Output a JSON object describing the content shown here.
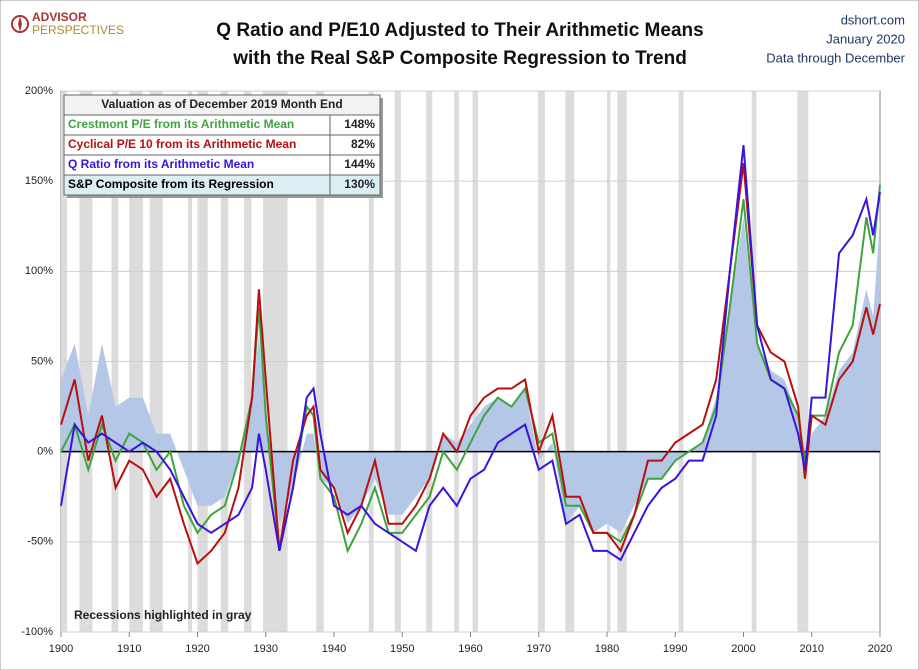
{
  "chart_data": {
    "type": "line",
    "logo": [
      "ADVISOR",
      "PERSPECTIVES"
    ],
    "title_lines": [
      "Q Ratio and P/E10 Adjusted to Their Arithmetic Means",
      "with the Real S&P Composite Regression to Trend"
    ],
    "source": [
      "dshort.com",
      "January 2020",
      "Data through December"
    ],
    "annotation": "Recessions highlighted in gray",
    "table_title": "Valuation as of December 2019  Month End",
    "x": [
      1900,
      1902,
      1904,
      1906,
      1908,
      1910,
      1912,
      1914,
      1916,
      1918,
      1920,
      1922,
      1924,
      1926,
      1928,
      1929,
      1930,
      1932,
      1934,
      1936,
      1937,
      1938,
      1940,
      1942,
      1944,
      1946,
      1948,
      1950,
      1952,
      1954,
      1956,
      1958,
      1960,
      1962,
      1964,
      1966,
      1968,
      1970,
      1972,
      1974,
      1976,
      1978,
      1980,
      1982,
      1984,
      1986,
      1988,
      1990,
      1992,
      1994,
      1996,
      1998,
      2000,
      2002,
      2004,
      2006,
      2008,
      2009,
      2010,
      2012,
      2014,
      2016,
      2018,
      2019,
      2020
    ],
    "series": [
      {
        "name": "S&P Composite from its Regression",
        "style": "area",
        "color": "#b4c7e7",
        "latest": 130,
        "latest_label": "130%",
        "values": [
          40,
          60,
          20,
          60,
          25,
          30,
          30,
          10,
          10,
          -10,
          -30,
          -30,
          -25,
          -5,
          30,
          65,
          20,
          -40,
          -20,
          10,
          10,
          -15,
          -20,
          -40,
          -30,
          -15,
          -35,
          -35,
          -25,
          -15,
          10,
          5,
          15,
          25,
          30,
          25,
          35,
          -5,
          5,
          -40,
          -30,
          -45,
          -40,
          -45,
          -30,
          -15,
          -15,
          -5,
          0,
          5,
          30,
          80,
          130,
          60,
          45,
          40,
          20,
          -5,
          10,
          20,
          45,
          55,
          90,
          75,
          130
        ]
      },
      {
        "name": "Crestmont P/E from its Arithmetic Mean",
        "style": "line",
        "color": "#3fa33f",
        "latest": 148,
        "latest_label": "148%",
        "values": [
          0,
          15,
          -10,
          15,
          -5,
          10,
          5,
          -10,
          0,
          -30,
          -45,
          -35,
          -30,
          -5,
          30,
          80,
          20,
          -55,
          -20,
          25,
          20,
          -15,
          -25,
          -55,
          -40,
          -20,
          -45,
          -45,
          -35,
          -25,
          0,
          -10,
          5,
          20,
          30,
          25,
          35,
          5,
          10,
          -30,
          -30,
          -45,
          -45,
          -50,
          -35,
          -15,
          -15,
          -5,
          0,
          5,
          25,
          80,
          140,
          60,
          40,
          35,
          20,
          -5,
          20,
          20,
          55,
          70,
          130,
          110,
          148
        ]
      },
      {
        "name": "Cyclical P/E 10 from its Arithmetic Mean",
        "style": "line",
        "color": "#b80f0f",
        "latest": 82,
        "latest_label": "82%",
        "values": [
          15,
          40,
          -5,
          20,
          -20,
          -5,
          -10,
          -25,
          -15,
          -40,
          -62,
          -55,
          -45,
          -20,
          30,
          90,
          40,
          -55,
          -5,
          20,
          25,
          -10,
          -20,
          -45,
          -30,
          -5,
          -40,
          -40,
          -30,
          -15,
          10,
          0,
          20,
          30,
          35,
          35,
          40,
          0,
          20,
          -25,
          -25,
          -45,
          -45,
          -55,
          -35,
          -5,
          -5,
          5,
          10,
          15,
          40,
          100,
          160,
          70,
          55,
          50,
          25,
          -15,
          20,
          15,
          40,
          50,
          80,
          65,
          82
        ]
      },
      {
        "name": "Q Ratio from its Arithmetic Mean",
        "style": "line",
        "color": "#3a14dc",
        "latest": 144,
        "latest_label": "144%",
        "values": [
          -30,
          15,
          5,
          10,
          5,
          0,
          5,
          0,
          -10,
          -25,
          -40,
          -45,
          -40,
          -35,
          -20,
          10,
          -10,
          -55,
          -20,
          30,
          35,
          10,
          -30,
          -35,
          -30,
          -40,
          -45,
          -50,
          -55,
          -30,
          -20,
          -30,
          -15,
          -10,
          5,
          10,
          15,
          -10,
          -5,
          -40,
          -35,
          -55,
          -55,
          -60,
          -45,
          -30,
          -20,
          -15,
          -5,
          -5,
          20,
          100,
          170,
          70,
          40,
          35,
          10,
          -10,
          30,
          30,
          110,
          120,
          140,
          120,
          144
        ]
      }
    ],
    "recessions": [
      [
        1899.5,
        1900.9
      ],
      [
        1902.7,
        1904.6
      ],
      [
        1907.4,
        1908.4
      ],
      [
        1910.0,
        1912.0
      ],
      [
        1913.0,
        1914.9
      ],
      [
        1918.6,
        1919.2
      ],
      [
        1920.0,
        1921.5
      ],
      [
        1923.4,
        1924.5
      ],
      [
        1926.8,
        1927.9
      ],
      [
        1929.6,
        1933.2
      ],
      [
        1937.4,
        1938.5
      ],
      [
        1945.1,
        1945.8
      ],
      [
        1948.9,
        1949.8
      ],
      [
        1953.5,
        1954.4
      ],
      [
        1957.6,
        1958.3
      ],
      [
        1960.3,
        1961.1
      ],
      [
        1969.9,
        1970.9
      ],
      [
        1973.9,
        1975.2
      ],
      [
        1980.0,
        1980.5
      ],
      [
        1981.5,
        1982.9
      ],
      [
        1990.5,
        1991.2
      ],
      [
        2001.2,
        2001.9
      ],
      [
        2007.9,
        2009.5
      ]
    ],
    "recession_color": "#dcdcdc",
    "xlim": [
      1900,
      2020
    ],
    "xticks": [
      1900,
      1910,
      1920,
      1930,
      1940,
      1950,
      1960,
      1970,
      1980,
      1990,
      2000,
      2010,
      2020
    ],
    "ylim": [
      -100,
      200
    ],
    "yticks": [
      {
        "value": -100,
        "label": "-100%"
      },
      {
        "value": -50,
        "label": "-50%"
      },
      {
        "value": 0,
        "label": "0%"
      },
      {
        "value": 50,
        "label": "50%"
      },
      {
        "value": 100,
        "label": "100%"
      },
      {
        "value": 150,
        "label": "150%"
      },
      {
        "value": 200,
        "label": "200%"
      }
    ],
    "grid": true
  }
}
